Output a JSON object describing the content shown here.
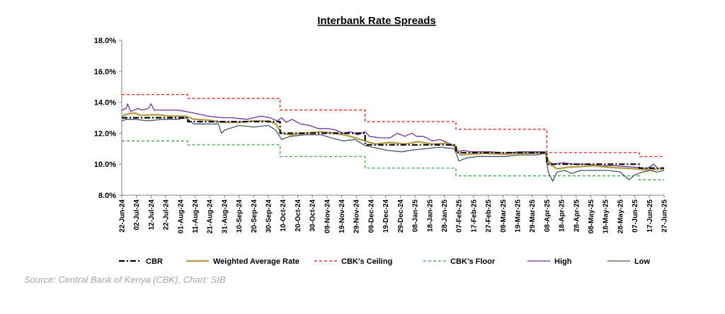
{
  "chart_data": {
    "type": "line",
    "title": "Interbank Rate Spreads",
    "ylim": [
      8,
      18
    ],
    "yticks": [
      8,
      10,
      12,
      14,
      16,
      18
    ],
    "ytick_labels": [
      "8.0%",
      "10.0%",
      "12.0%",
      "14.0%",
      "16.0%",
      "18.0%"
    ],
    "xlim": [
      "2024-06-22",
      "2025-06-27"
    ],
    "x_tick_labels": [
      "22-Jun-24",
      "02-Jul-24",
      "12-Jul-24",
      "22-Jul-24",
      "01-Aug-24",
      "11-Aug-24",
      "21-Aug-24",
      "31-Aug-24",
      "10-Sep-24",
      "20-Sep-24",
      "30-Sep-24",
      "10-Oct-24",
      "20-Oct-24",
      "30-Oct-24",
      "09-Nov-24",
      "19-Nov-24",
      "29-Nov-24",
      "09-Dec-24",
      "19-Dec-24",
      "29-Dec-24",
      "08-Jan-25",
      "18-Jan-25",
      "28-Jan-25",
      "07-Feb-25",
      "17-Feb-25",
      "27-Feb-25",
      "09-Mar-25",
      "19-Mar-25",
      "29-Mar-25",
      "08-Apr-25",
      "18-Apr-25",
      "28-Apr-25",
      "08-May-25",
      "18-May-25",
      "28-May-25",
      "07-Jun-25",
      "17-Jun-25",
      "27-Jun-25"
    ],
    "grid": false,
    "legend_position": "bottom",
    "series": [
      {
        "name": "CBR",
        "style": "dash-dot",
        "color": "#000000",
        "points": [
          [
            "2024-06-22",
            13.0
          ],
          [
            "2024-08-06",
            13.0
          ],
          [
            "2024-08-06",
            12.75
          ],
          [
            "2024-10-08",
            12.75
          ],
          [
            "2024-10-08",
            12.0
          ],
          [
            "2024-12-05",
            12.0
          ],
          [
            "2024-12-05",
            11.25
          ],
          [
            "2025-02-05",
            11.25
          ],
          [
            "2025-02-05",
            10.75
          ],
          [
            "2025-04-08",
            10.75
          ],
          [
            "2025-04-08",
            10.0
          ],
          [
            "2025-06-10",
            10.0
          ],
          [
            "2025-06-10",
            9.75
          ],
          [
            "2025-06-27",
            9.75
          ]
        ]
      },
      {
        "name": "Weighted Average Rate",
        "style": "solid-thick",
        "color": "#b8a04b",
        "points": [
          [
            "2024-06-22",
            13.1
          ],
          [
            "2024-06-26",
            13.25
          ],
          [
            "2024-07-01",
            13.3
          ],
          [
            "2024-07-05",
            13.15
          ],
          [
            "2024-07-15",
            13.2
          ],
          [
            "2024-07-25",
            13.1
          ],
          [
            "2024-08-05",
            13.1
          ],
          [
            "2024-08-10",
            12.9
          ],
          [
            "2024-08-20",
            12.85
          ],
          [
            "2024-08-30",
            12.7
          ],
          [
            "2024-09-10",
            12.7
          ],
          [
            "2024-09-20",
            12.8
          ],
          [
            "2024-09-30",
            12.8
          ],
          [
            "2024-10-05",
            12.6
          ],
          [
            "2024-10-09",
            12.0
          ],
          [
            "2024-10-15",
            11.9
          ],
          [
            "2024-10-25",
            12.0
          ],
          [
            "2024-11-05",
            12.1
          ],
          [
            "2024-11-15",
            12.0
          ],
          [
            "2024-11-25",
            11.8
          ],
          [
            "2024-12-05",
            11.5
          ],
          [
            "2024-12-12",
            11.3
          ],
          [
            "2024-12-22",
            11.4
          ],
          [
            "2025-01-01",
            11.3
          ],
          [
            "2025-01-10",
            11.45
          ],
          [
            "2025-01-20",
            11.3
          ],
          [
            "2025-01-30",
            11.35
          ],
          [
            "2025-02-05",
            11.1
          ],
          [
            "2025-02-08",
            10.6
          ],
          [
            "2025-02-15",
            10.65
          ],
          [
            "2025-02-25",
            10.7
          ],
          [
            "2025-03-10",
            10.65
          ],
          [
            "2025-03-20",
            10.7
          ],
          [
            "2025-03-30",
            10.7
          ],
          [
            "2025-04-07",
            10.75
          ],
          [
            "2025-04-10",
            10.0
          ],
          [
            "2025-04-15",
            9.7
          ],
          [
            "2025-04-22",
            9.8
          ],
          [
            "2025-05-01",
            9.85
          ],
          [
            "2025-05-10",
            9.9
          ],
          [
            "2025-05-20",
            9.8
          ],
          [
            "2025-05-30",
            9.75
          ],
          [
            "2025-06-08",
            9.7
          ],
          [
            "2025-06-15",
            9.65
          ],
          [
            "2025-06-27",
            9.7
          ]
        ]
      },
      {
        "name": "CBK's Ceiling",
        "style": "dashed",
        "color": "#ff0000",
        "points": [
          [
            "2024-06-22",
            14.5
          ],
          [
            "2024-08-06",
            14.5
          ],
          [
            "2024-08-06",
            14.25
          ],
          [
            "2024-10-08",
            14.25
          ],
          [
            "2024-10-08",
            13.5
          ],
          [
            "2024-12-05",
            13.5
          ],
          [
            "2024-12-05",
            12.75
          ],
          [
            "2025-02-05",
            12.75
          ],
          [
            "2025-02-05",
            12.25
          ],
          [
            "2025-04-08",
            12.25
          ],
          [
            "2025-04-08",
            10.75
          ],
          [
            "2025-06-10",
            10.75
          ],
          [
            "2025-06-10",
            10.5
          ],
          [
            "2025-06-27",
            10.5
          ]
        ]
      },
      {
        "name": "CBK's Floor",
        "style": "dashed",
        "color": "#339933",
        "points": [
          [
            "2024-06-22",
            11.5
          ],
          [
            "2024-08-06",
            11.5
          ],
          [
            "2024-08-06",
            11.25
          ],
          [
            "2024-10-08",
            11.25
          ],
          [
            "2024-10-08",
            10.5
          ],
          [
            "2024-12-05",
            10.5
          ],
          [
            "2024-12-05",
            9.75
          ],
          [
            "2025-02-05",
            9.75
          ],
          [
            "2025-02-05",
            9.25
          ],
          [
            "2025-04-08",
            9.25
          ],
          [
            "2025-06-10",
            9.25
          ],
          [
            "2025-06-10",
            9.0
          ],
          [
            "2025-06-27",
            9.0
          ]
        ]
      },
      {
        "name": "High",
        "style": "solid",
        "color": "#7030a0",
        "points": [
          [
            "2024-06-22",
            13.5
          ],
          [
            "2024-06-25",
            13.6
          ],
          [
            "2024-06-26",
            13.9
          ],
          [
            "2024-06-28",
            13.4
          ],
          [
            "2024-07-03",
            13.6
          ],
          [
            "2024-07-06",
            13.5
          ],
          [
            "2024-07-10",
            13.6
          ],
          [
            "2024-07-12",
            13.9
          ],
          [
            "2024-07-14",
            13.5
          ],
          [
            "2024-07-25",
            13.5
          ],
          [
            "2024-07-30",
            13.5
          ],
          [
            "2024-08-05",
            13.4
          ],
          [
            "2024-08-10",
            13.3
          ],
          [
            "2024-08-20",
            13.1
          ],
          [
            "2024-08-30",
            13.0
          ],
          [
            "2024-09-05",
            13.0
          ],
          [
            "2024-09-15",
            12.9
          ],
          [
            "2024-09-25",
            13.1
          ],
          [
            "2024-10-01",
            13.0
          ],
          [
            "2024-10-06",
            12.8
          ],
          [
            "2024-10-09",
            13.0
          ],
          [
            "2024-10-12",
            12.7
          ],
          [
            "2024-10-16",
            12.9
          ],
          [
            "2024-10-22",
            12.6
          ],
          [
            "2024-10-28",
            12.5
          ],
          [
            "2024-11-03",
            12.3
          ],
          [
            "2024-11-10",
            12.3
          ],
          [
            "2024-11-15",
            12.2
          ],
          [
            "2024-11-20",
            12.0
          ],
          [
            "2024-11-25",
            12.1
          ],
          [
            "2024-11-30",
            11.9
          ],
          [
            "2024-12-05",
            12.1
          ],
          [
            "2024-12-08",
            11.8
          ],
          [
            "2024-12-15",
            11.7
          ],
          [
            "2024-12-22",
            11.7
          ],
          [
            "2024-12-27",
            12.0
          ],
          [
            "2025-01-01",
            11.8
          ],
          [
            "2025-01-06",
            12.0
          ],
          [
            "2025-01-09",
            11.8
          ],
          [
            "2025-01-14",
            11.8
          ],
          [
            "2025-01-20",
            11.5
          ],
          [
            "2025-01-25",
            11.6
          ],
          [
            "2025-01-30",
            11.4
          ],
          [
            "2025-02-04",
            11.2
          ],
          [
            "2025-02-06",
            10.8
          ],
          [
            "2025-02-10",
            10.9
          ],
          [
            "2025-02-15",
            10.8
          ],
          [
            "2025-02-20",
            10.8
          ],
          [
            "2025-03-01",
            10.8
          ],
          [
            "2025-03-10",
            10.7
          ],
          [
            "2025-03-20",
            10.8
          ],
          [
            "2025-04-01",
            10.8
          ],
          [
            "2025-04-07",
            10.8
          ],
          [
            "2025-04-09",
            10.2
          ],
          [
            "2025-04-12",
            10.0
          ],
          [
            "2025-04-20",
            10.1
          ],
          [
            "2025-04-25",
            10.0
          ],
          [
            "2025-05-05",
            10.0
          ],
          [
            "2025-05-15",
            9.9
          ],
          [
            "2025-05-25",
            9.9
          ],
          [
            "2025-06-01",
            9.85
          ],
          [
            "2025-06-08",
            9.8
          ],
          [
            "2025-06-15",
            9.7
          ],
          [
            "2025-06-20",
            10.0
          ],
          [
            "2025-06-23",
            9.7
          ],
          [
            "2025-06-27",
            9.75
          ]
        ]
      },
      {
        "name": "Low",
        "style": "solid",
        "color": "#44546a",
        "points": [
          [
            "2024-06-22",
            12.8
          ],
          [
            "2024-06-25",
            12.9
          ],
          [
            "2024-07-01",
            12.9
          ],
          [
            "2024-07-10",
            12.8
          ],
          [
            "2024-07-20",
            12.9
          ],
          [
            "2024-07-30",
            12.9
          ],
          [
            "2024-08-05",
            13.0
          ],
          [
            "2024-08-10",
            12.6
          ],
          [
            "2024-08-20",
            12.6
          ],
          [
            "2024-08-27",
            12.6
          ],
          [
            "2024-08-29",
            12.0
          ],
          [
            "2024-08-31",
            12.2
          ],
          [
            "2024-09-10",
            12.5
          ],
          [
            "2024-09-20",
            12.4
          ],
          [
            "2024-09-30",
            12.5
          ],
          [
            "2024-10-05",
            12.2
          ],
          [
            "2024-10-09",
            11.6
          ],
          [
            "2024-10-15",
            11.8
          ],
          [
            "2024-10-25",
            11.9
          ],
          [
            "2024-11-05",
            11.9
          ],
          [
            "2024-11-12",
            11.7
          ],
          [
            "2024-11-20",
            11.5
          ],
          [
            "2024-11-28",
            11.6
          ],
          [
            "2024-12-05",
            11.2
          ],
          [
            "2024-12-10",
            11.1
          ],
          [
            "2024-12-20",
            10.9
          ],
          [
            "2024-12-30",
            10.8
          ],
          [
            "2025-01-05",
            10.9
          ],
          [
            "2025-01-15",
            11.0
          ],
          [
            "2025-01-25",
            11.1
          ],
          [
            "2025-02-04",
            11.0
          ],
          [
            "2025-02-07",
            10.2
          ],
          [
            "2025-02-12",
            10.4
          ],
          [
            "2025-02-20",
            10.5
          ],
          [
            "2025-03-01",
            10.5
          ],
          [
            "2025-03-10",
            10.5
          ],
          [
            "2025-03-20",
            10.6
          ],
          [
            "2025-04-01",
            10.6
          ],
          [
            "2025-04-07",
            10.7
          ],
          [
            "2025-04-09",
            9.5
          ],
          [
            "2025-04-12",
            8.9
          ],
          [
            "2025-04-15",
            9.5
          ],
          [
            "2025-04-20",
            9.6
          ],
          [
            "2025-04-25",
            9.4
          ],
          [
            "2025-05-01",
            9.6
          ],
          [
            "2025-05-10",
            9.6
          ],
          [
            "2025-05-20",
            9.6
          ],
          [
            "2025-05-28",
            9.5
          ],
          [
            "2025-06-03",
            9.0
          ],
          [
            "2025-06-07",
            9.3
          ],
          [
            "2025-06-12",
            9.5
          ],
          [
            "2025-06-18",
            9.6
          ],
          [
            "2025-06-22",
            9.5
          ],
          [
            "2025-06-27",
            9.6
          ]
        ]
      }
    ]
  },
  "source": "Source: Central Bank of Kenya (CBK), Chart: SIB"
}
